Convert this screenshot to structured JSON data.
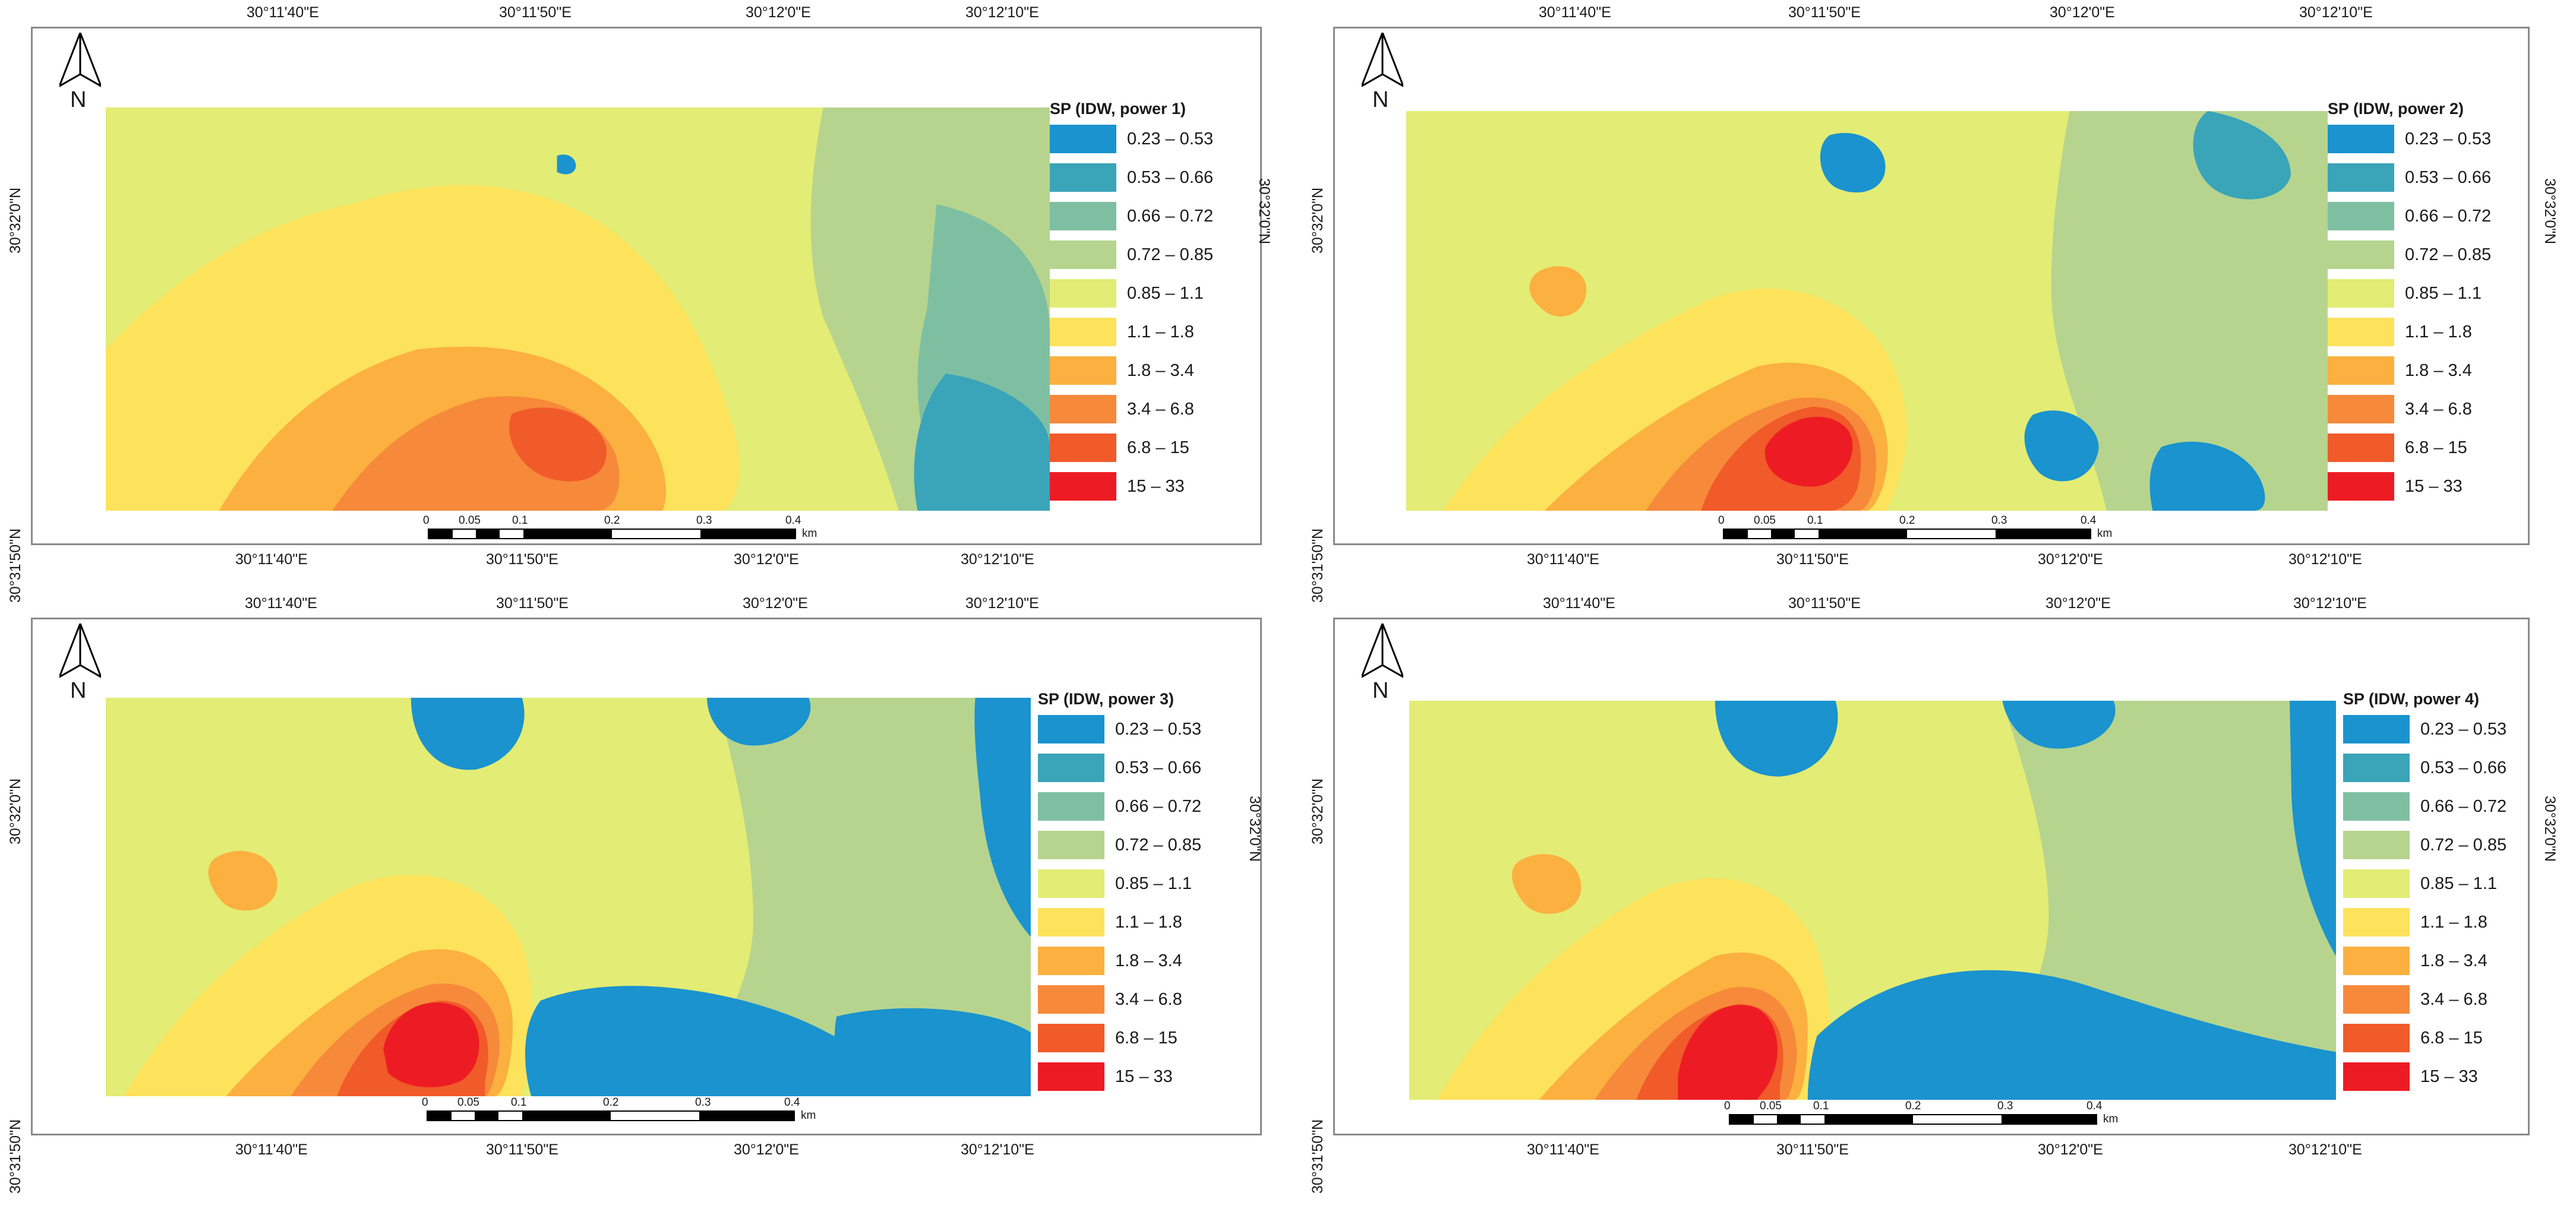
{
  "panels": [
    {
      "legend_title": "SP  (IDW, power 1)",
      "top_ticks": [
        "30°11'40\"E",
        "30°11'50\"E",
        "30°12'0\"E",
        "30°12'10\"E"
      ],
      "bottom_ticks": [
        "30°11'40\"E",
        "30°11'50\"E",
        "30°12'0\"E",
        "30°12'10\"E"
      ],
      "left_ticks": [
        "30°32'0\"N",
        "30°31'50\"N"
      ],
      "right_ticks": [
        "30°32'0\"N"
      ]
    },
    {
      "legend_title": "SP  (IDW, power 2)",
      "top_ticks": [
        "30°11'40\"E",
        "30°11'50\"E",
        "30°12'0\"E",
        "30°12'10\"E"
      ],
      "bottom_ticks": [
        "30°11'40\"E",
        "30°11'50\"E",
        "30°12'0\"E",
        "30°12'10\"E"
      ],
      "left_ticks": [
        "30°32'0\"N",
        "30°31'50\"N"
      ],
      "right_ticks": [
        "30°32'0\"N"
      ]
    },
    {
      "legend_title": "SP  (IDW, power 3)",
      "top_ticks": [
        "30°11'40\"E",
        "30°11'50\"E",
        "30°12'0\"E",
        "30°12'10\"E"
      ],
      "bottom_ticks": [
        "30°11'40\"E",
        "30°11'50\"E",
        "30°12'0\"E",
        "30°12'10\"E"
      ],
      "left_ticks": [
        "30°32'0\"N",
        "30°31'50\"N"
      ],
      "right_ticks": [
        "30°32'0\"N"
      ]
    },
    {
      "legend_title": "SP  (IDW, power 4)",
      "top_ticks": [
        "30°11'40\"E",
        "30°11'50\"E",
        "30°12'0\"E",
        "30°12'10\"E"
      ],
      "bottom_ticks": [
        "30°11'40\"E",
        "30°11'50\"E",
        "30°12'0\"E",
        "30°12'10\"E"
      ],
      "left_ticks": [
        "30°32'0\"N",
        "30°31'50\"N"
      ],
      "right_ticks": [
        "30°32'0\"N"
      ]
    }
  ],
  "legend_classes": [
    {
      "label": "0.23 – 0.53",
      "color": "#1a93cf"
    },
    {
      "label": "0.53 – 0.66",
      "color": "#3aa4b8"
    },
    {
      "label": "0.66 – 0.72",
      "color": "#7fbfa1"
    },
    {
      "label": "0.72 – 0.85",
      "color": "#b6d48e"
    },
    {
      "label": "0.85 – 1.1",
      "color": "#e3ec74"
    },
    {
      "label": "1.1 – 1.8",
      "color": "#fde25c"
    },
    {
      "label": "1.8 – 3.4",
      "color": "#fbb040"
    },
    {
      "label": "3.4 – 6.8",
      "color": "#f7893a"
    },
    {
      "label": "6.8 – 15",
      "color": "#f15a29"
    },
    {
      "label": "15 – 33",
      "color": "#ed1c24"
    }
  ],
  "north_label": "N",
  "scale_labels": [
    "0",
    "0.05",
    "0.1",
    "0.2",
    "0.3",
    "0.4"
  ],
  "scale_unit": "km",
  "icons": {
    "north_arrow": "north-arrow-icon"
  }
}
